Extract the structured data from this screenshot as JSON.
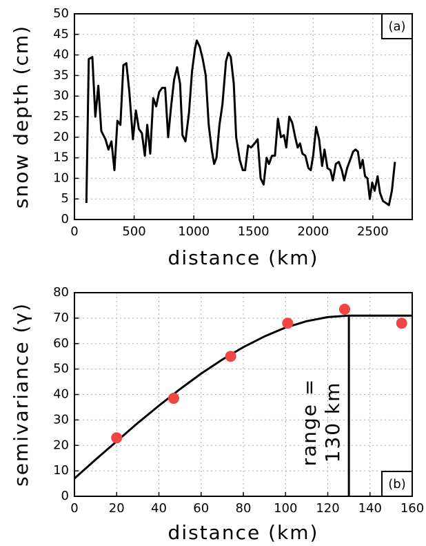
{
  "chart_data": [
    {
      "type": "line",
      "panel_label": "(a)",
      "x_label": "distance (km)",
      "y_label": "snow depth (cm)",
      "color": "#000000",
      "grid": true,
      "xlim": [
        0,
        2830
      ],
      "xticks": [
        0,
        500,
        1000,
        1500,
        2000,
        2500
      ],
      "ylim": [
        0,
        50
      ],
      "yticks": [
        0,
        5,
        10,
        15,
        20,
        25,
        30,
        35,
        40,
        45,
        50
      ],
      "x": [
        100,
        120,
        150,
        175,
        200,
        225,
        260,
        285,
        310,
        335,
        360,
        385,
        410,
        435,
        460,
        490,
        515,
        540,
        565,
        590,
        610,
        635,
        660,
        685,
        710,
        735,
        760,
        785,
        810,
        835,
        860,
        885,
        905,
        930,
        960,
        985,
        1010,
        1025,
        1050,
        1075,
        1100,
        1125,
        1150,
        1170,
        1190,
        1215,
        1240,
        1270,
        1290,
        1310,
        1335,
        1355,
        1385,
        1410,
        1430,
        1455,
        1480,
        1510,
        1535,
        1560,
        1585,
        1610,
        1630,
        1655,
        1680,
        1705,
        1730,
        1755,
        1775,
        1800,
        1825,
        1850,
        1870,
        1890,
        1910,
        1935,
        1960,
        1980,
        2000,
        2025,
        2050,
        2075,
        2095,
        2120,
        2145,
        2165,
        2190,
        2215,
        2240,
        2260,
        2285,
        2310,
        2335,
        2355,
        2375,
        2395,
        2415,
        2435,
        2455,
        2475,
        2495,
        2515,
        2540,
        2560,
        2585,
        2610,
        2635,
        2660,
        2685
      ],
      "values": [
        4,
        39,
        39.5,
        25,
        32.5,
        21.5,
        19.5,
        17,
        19,
        12,
        24,
        23,
        37.5,
        38,
        31,
        19.5,
        26.5,
        22,
        21,
        15.5,
        23,
        16,
        29.5,
        27.5,
        31,
        32,
        32,
        20,
        27.5,
        34,
        37,
        33,
        20.5,
        19,
        26,
        36,
        41.5,
        43.5,
        42,
        39,
        35,
        23,
        17,
        13.5,
        15,
        23,
        28,
        38.5,
        40.5,
        39.5,
        33,
        20,
        14.5,
        12,
        12,
        18,
        17.5,
        18.5,
        19.5,
        10,
        8.5,
        15,
        13.5,
        15.5,
        15.5,
        24.5,
        20,
        20.5,
        17.5,
        25,
        23.5,
        20,
        17.5,
        18.5,
        16,
        15.5,
        12.5,
        12,
        15.5,
        22.5,
        19.5,
        13,
        17,
        12.5,
        12,
        9.5,
        13.5,
        14,
        12,
        9.5,
        12.5,
        14.5,
        16.5,
        17,
        16.5,
        12.5,
        14.5,
        10.5,
        10,
        5,
        9,
        7,
        10.5,
        6.5,
        4.5,
        4,
        3.5,
        7,
        14
      ]
    },
    {
      "type": "scatter",
      "panel_label": "(b)",
      "x_label": "distance (km)",
      "y_label": "semivariance (γ)",
      "color": "#f04545",
      "grid": true,
      "xlim": [
        0,
        160
      ],
      "xticks": [
        0,
        20,
        40,
        60,
        80,
        100,
        120,
        140,
        160
      ],
      "ylim": [
        0,
        80
      ],
      "yticks": [
        0,
        10,
        20,
        30,
        40,
        50,
        60,
        70,
        80
      ],
      "x": [
        20,
        47,
        74,
        101,
        128,
        155
      ],
      "values": [
        23,
        38.5,
        55,
        68,
        73.5,
        68
      ],
      "model": {
        "x": [
          0,
          10,
          20,
          30,
          40,
          50,
          60,
          70,
          80,
          90,
          100,
          110,
          120,
          130,
          140,
          150,
          160
        ],
        "values": [
          7,
          14.4,
          21.6,
          28.8,
          35.6,
          42.1,
          48.2,
          53.7,
          58.6,
          62.8,
          66.3,
          68.8,
          70.4,
          71,
          71,
          71,
          71
        ]
      },
      "range": 130,
      "sill": 71,
      "annotation": [
        "range =",
        "130 km"
      ]
    }
  ]
}
